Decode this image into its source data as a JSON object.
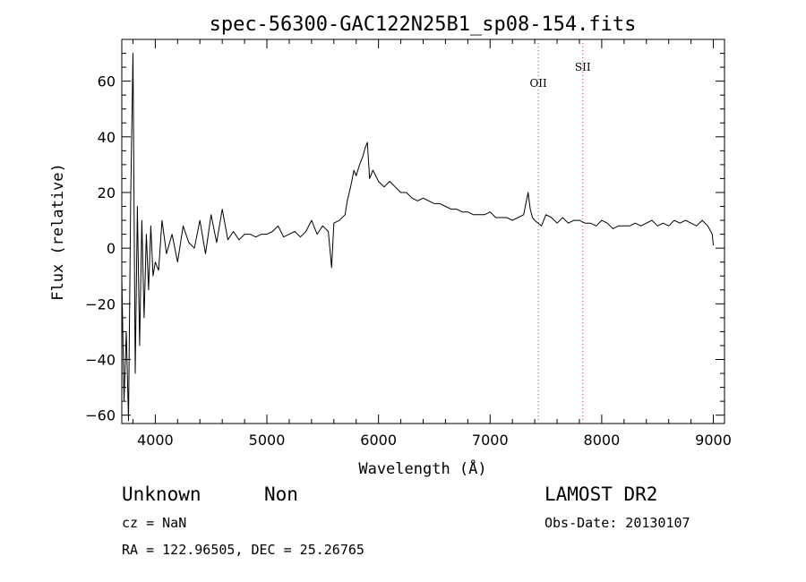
{
  "chart_data": {
    "type": "line",
    "title": "spec-56300-GAC122N25B1_sp08-154.fits",
    "xlabel": "Wavelength (Å)",
    "ylabel": "Flux (relative)",
    "xlim": [
      3700,
      9100
    ],
    "ylim": [
      -63,
      75
    ],
    "xticks": [
      4000,
      5000,
      6000,
      7000,
      8000,
      9000
    ],
    "yticks": [
      -60,
      -40,
      -20,
      0,
      20,
      40,
      60
    ],
    "grid": false,
    "series": [
      {
        "x": [
          3700,
          3720,
          3740,
          3760,
          3780,
          3800,
          3820,
          3840,
          3860,
          3880,
          3900,
          3920,
          3940,
          3960,
          3980,
          4000,
          4030,
          4060,
          4100,
          4150,
          4200,
          4250,
          4300,
          4350,
          4400,
          4450,
          4500,
          4550,
          4600,
          4650,
          4700,
          4750,
          4800,
          4850,
          4900,
          4950,
          5000,
          5050,
          5100,
          5150,
          5200,
          5250,
          5300,
          5350,
          5400,
          5450,
          5500,
          5550,
          5580,
          5600,
          5650,
          5700,
          5720,
          5750,
          5780,
          5800,
          5830,
          5860,
          5880,
          5900,
          5920,
          5950,
          6000,
          6050,
          6100,
          6150,
          6200,
          6250,
          6300,
          6350,
          6400,
          6450,
          6500,
          6550,
          6600,
          6650,
          6700,
          6750,
          6800,
          6850,
          6900,
          6950,
          7000,
          7050,
          7100,
          7150,
          7200,
          7250,
          7300,
          7320,
          7340,
          7360,
          7380,
          7400,
          7430,
          7460,
          7500,
          7550,
          7600,
          7650,
          7700,
          7750,
          7800,
          7850,
          7900,
          7950,
          8000,
          8050,
          8100,
          8150,
          8200,
          8250,
          8300,
          8350,
          8400,
          8450,
          8500,
          8550,
          8600,
          8650,
          8700,
          8750,
          8800,
          8850,
          8900,
          8950,
          8990,
          9000
        ],
        "y": [
          -10,
          -55,
          -30,
          -62,
          20,
          70,
          -45,
          15,
          -35,
          10,
          -25,
          5,
          -15,
          8,
          -10,
          -5,
          -8,
          10,
          -2,
          5,
          -5,
          8,
          2,
          0,
          10,
          -2,
          12,
          2,
          14,
          3,
          6,
          3,
          5,
          5,
          4,
          5,
          5,
          6,
          8,
          4,
          5,
          6,
          4,
          6,
          10,
          5,
          8,
          6,
          -7,
          9,
          10,
          12,
          17,
          22,
          28,
          26,
          30,
          33,
          36,
          38,
          25,
          28,
          24,
          22,
          24,
          22,
          20,
          20,
          18,
          17,
          18,
          17,
          16,
          16,
          15,
          14,
          14,
          13,
          13,
          12,
          12,
          12,
          13,
          11,
          11,
          11,
          10,
          11,
          12,
          16,
          20,
          14,
          11,
          10,
          9,
          8,
          12,
          11,
          9,
          11,
          9,
          10,
          10,
          9,
          9,
          8,
          10,
          9,
          7,
          8,
          8,
          8,
          9,
          8,
          9,
          10,
          8,
          9,
          8,
          10,
          9,
          10,
          9,
          8,
          10,
          8,
          5,
          1
        ]
      }
    ],
    "annotations": [
      {
        "label": "OII",
        "x": 7432
      },
      {
        "label": "SII",
        "x": 7830
      }
    ]
  },
  "footer": {
    "class_label": "Unknown",
    "subclass_label": "Non",
    "survey": "LAMOST DR2",
    "cz": "cz = NaN",
    "obs_date": "Obs-Date: 20130107",
    "coords": "RA = 122.96505, DEC =  25.26765"
  }
}
